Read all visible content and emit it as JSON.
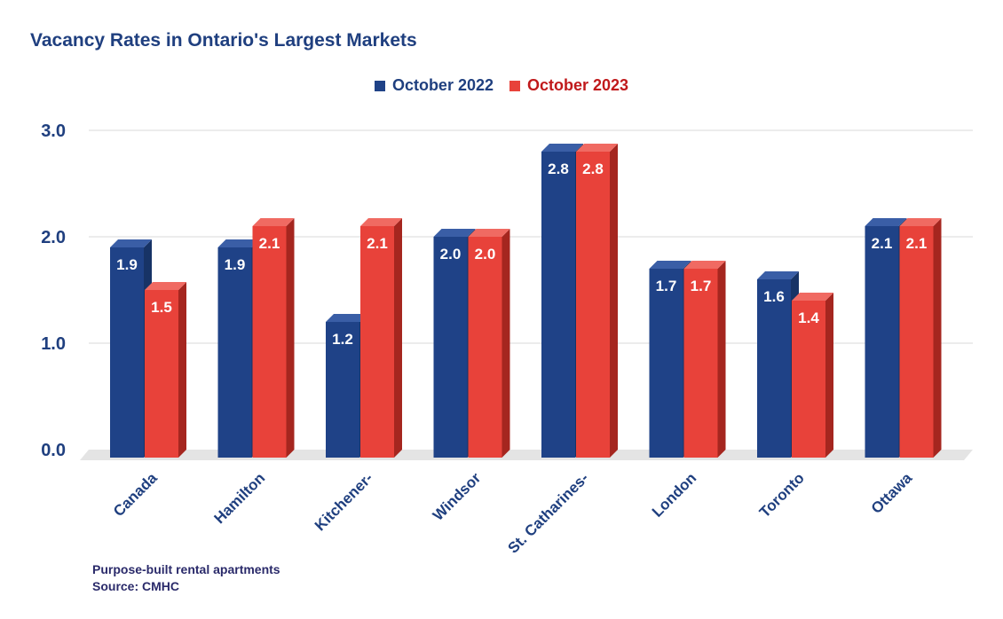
{
  "chart_data": {
    "type": "bar",
    "title": "Vacancy Rates in Ontario's Largest Markets",
    "categories": [
      "Canada",
      "Hamilton",
      "Kitchener-",
      "Windsor",
      "St. Catharines-",
      "London",
      "Toronto",
      "Ottawa"
    ],
    "series": [
      {
        "name": "October 2022",
        "color": "#1f4287",
        "values": [
          1.9,
          1.9,
          1.2,
          2.0,
          2.8,
          1.7,
          1.6,
          2.1
        ]
      },
      {
        "name": "October 2023",
        "color": "#e8423a",
        "values": [
          1.5,
          2.1,
          2.1,
          2.0,
          2.8,
          1.7,
          1.4,
          2.1
        ]
      }
    ],
    "ylim": [
      0,
      3
    ],
    "yticks": [
      "0.0",
      "1.0",
      "2.0",
      "3.0"
    ],
    "xlabel": "",
    "ylabel": "",
    "legend": "top-center",
    "grid": true
  },
  "footnote": {
    "line1": "Purpose-built rental apartments",
    "line2": "Source: CMHC"
  },
  "colors": {
    "title": "#1f3f7f",
    "axis_text": "#1f3f7f",
    "legend_2023_text": "#c0191b"
  }
}
